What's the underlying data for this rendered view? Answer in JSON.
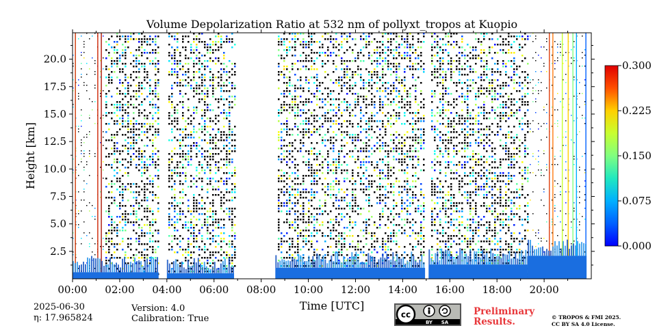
{
  "chart_data": {
    "type": "heatmap",
    "title": "Volume Depolarization Ratio at 532 nm of pollyxt_tropos at Kuopio",
    "xlabel": "Time [UTC]",
    "ylabel": "Height [km]",
    "xlim_hours": [
      0,
      22
    ],
    "ylim_km": [
      0,
      22.4
    ],
    "x_tick_labels": [
      "00:00",
      "02:00",
      "04:00",
      "06:00",
      "08:00",
      "10:00",
      "12:00",
      "14:00",
      "16:00",
      "18:00",
      "20:00"
    ],
    "x_ticks_hours": [
      0,
      2,
      4,
      6,
      8,
      10,
      12,
      14,
      16,
      18,
      20
    ],
    "y_tick_labels": [
      "2.5",
      "5.0",
      "7.5",
      "10.0",
      "12.5",
      "15.0",
      "17.5",
      "20.0"
    ],
    "y_ticks_km": [
      2.5,
      5.0,
      7.5,
      10.0,
      12.5,
      15.0,
      17.5,
      20.0
    ],
    "colorbar": {
      "min": 0.0,
      "max": 0.3,
      "tick_values": [
        0.0,
        0.075,
        0.15,
        0.225,
        0.3
      ],
      "tick_labels": [
        "0.000",
        "0.075",
        "0.150",
        "0.225",
        "0.300"
      ],
      "colormap": "jet"
    },
    "data_gaps_hours": [
      [
        3.65,
        4.0
      ],
      [
        6.85,
        8.6
      ],
      [
        14.95,
        15.1
      ]
    ],
    "near_surface_layer": [
      {
        "start_hour": 0.0,
        "end_hour": 3.65,
        "top_km": 0.6
      },
      {
        "start_hour": 4.0,
        "end_hour": 6.85,
        "top_km": 0.5
      },
      {
        "start_hour": 8.6,
        "end_hour": 14.95,
        "top_km": 1.0
      },
      {
        "start_hour": 15.1,
        "end_hour": 19.3,
        "top_km": 1.3
      },
      {
        "start_hour": 19.3,
        "end_hour": 21.8,
        "top_km": 2.1
      }
    ]
  },
  "footer": {
    "date": "2025-06-30",
    "eta": "η: 17.965824",
    "version": "Version: 4.0",
    "calibration": "Calibration: True",
    "preliminary_line1": "Preliminary",
    "preliminary_line2": "Results.",
    "copyright_line1": "© TROPOS & FMI 2025.",
    "copyright_line2": "CC BY SA 4.0 License.",
    "license_badge": {
      "cc": "cc",
      "by": "BY",
      "sa": "SA"
    }
  }
}
